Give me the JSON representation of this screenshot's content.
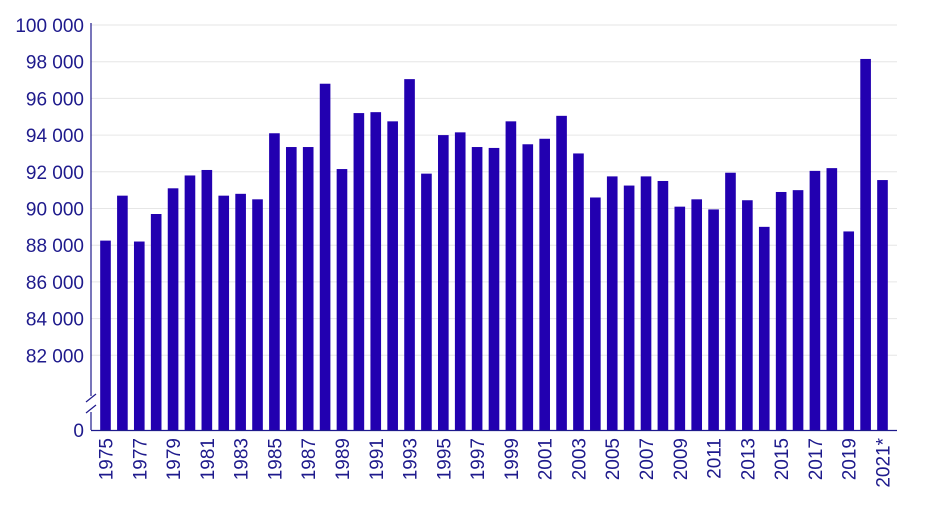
{
  "chart_data": {
    "type": "bar",
    "title": "",
    "xlabel": "",
    "ylabel": "",
    "axis_break": true,
    "ylim": [
      80000,
      100000
    ],
    "y_zero_label": "0",
    "y_ticks": [
      82000,
      84000,
      86000,
      88000,
      90000,
      92000,
      94000,
      96000,
      98000,
      100000
    ],
    "y_tick_labels": [
      "82 000",
      "84 000",
      "86 000",
      "88 000",
      "90 000",
      "92 000",
      "94 000",
      "96 000",
      "98 000",
      "100 000"
    ],
    "categories": [
      "1975",
      "1976",
      "1977",
      "1978",
      "1979",
      "1980",
      "1981",
      "1982",
      "1983",
      "1984",
      "1985",
      "1986",
      "1987",
      "1988",
      "1989",
      "1990",
      "1991",
      "1992",
      "1993",
      "1994",
      "1995",
      "1996",
      "1997",
      "1998",
      "1999",
      "2000",
      "2001",
      "2002",
      "2003",
      "2004",
      "2005",
      "2006",
      "2007",
      "2008",
      "2009",
      "2010",
      "2011",
      "2012",
      "2013",
      "2014",
      "2015",
      "2016",
      "2017",
      "2018",
      "2019",
      "2020",
      "2021*"
    ],
    "x_tick_labels_shown": [
      "1975",
      "1977",
      "1979",
      "1981",
      "1983",
      "1985",
      "1987",
      "1989",
      "1991",
      "1993",
      "1995",
      "1997",
      "1999",
      "2001",
      "2003",
      "2005",
      "2007",
      "2009",
      "2011",
      "2013",
      "2015",
      "2017",
      "2019",
      "2021*"
    ],
    "values": [
      88250,
      90700,
      88200,
      89700,
      91100,
      91800,
      92100,
      90700,
      90800,
      90500,
      94100,
      93350,
      93350,
      96800,
      92150,
      95200,
      95250,
      94750,
      97050,
      91900,
      94000,
      94150,
      93350,
      93300,
      94750,
      93500,
      93800,
      95050,
      93000,
      90600,
      91750,
      91250,
      91750,
      91500,
      90100,
      90500,
      89950,
      91950,
      90450,
      89000,
      90900,
      91000,
      92050,
      92200,
      88750,
      98150,
      91550
    ],
    "bar_color": "#2200b0",
    "grid": true,
    "legend": "none"
  }
}
